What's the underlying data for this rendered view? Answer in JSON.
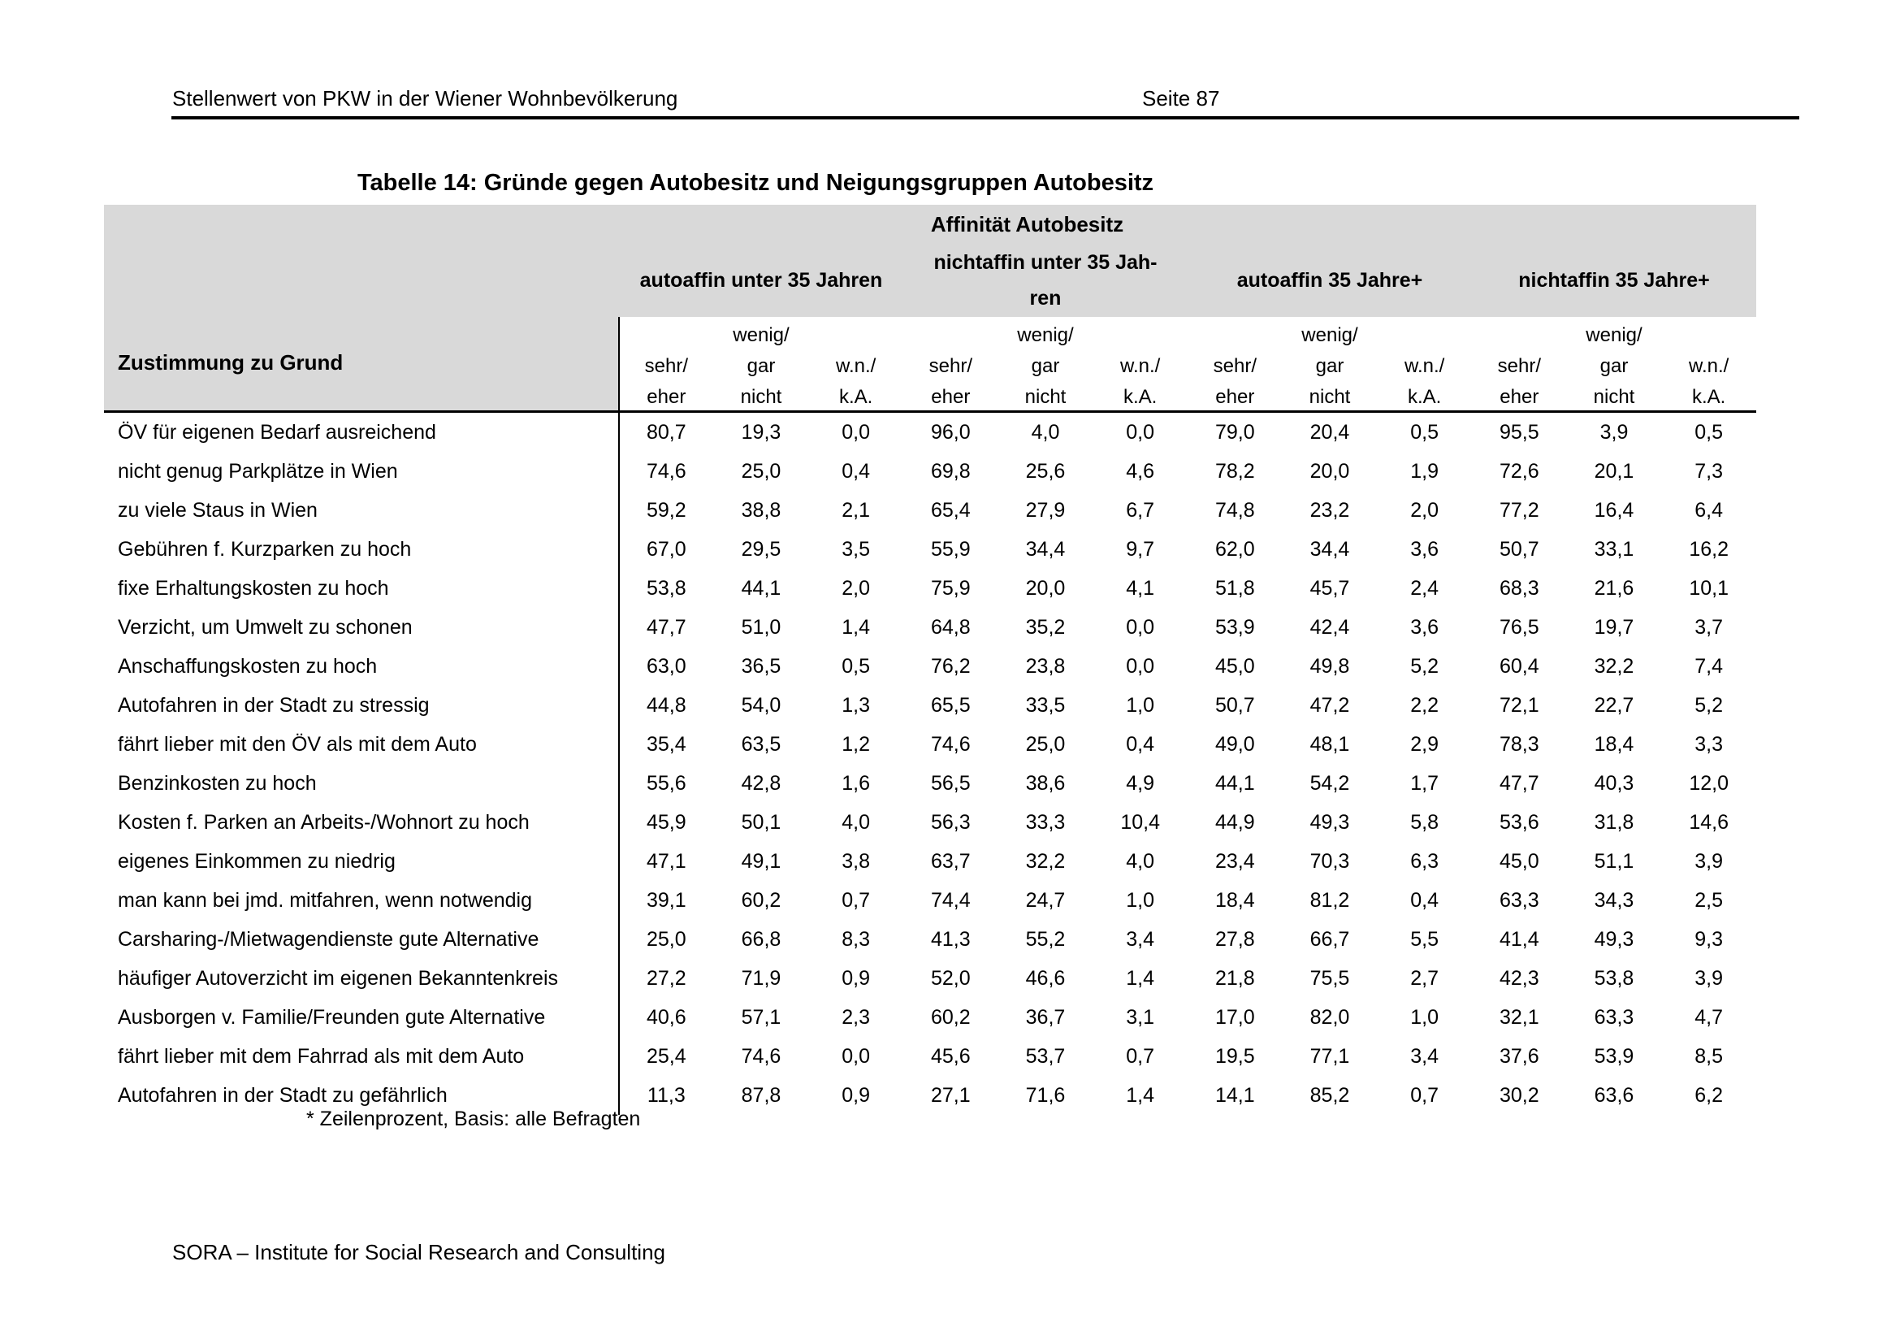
{
  "page_header": {
    "title": "Stellenwert von PKW in der Wiener Wohnbevölkerung",
    "page_number": "Seite 87"
  },
  "table": {
    "title": "Tabelle 14: Gründe gegen Autobesitz und Neigungsgruppen Autobesitz",
    "banner": "Affinität Autobesitz",
    "row_header": "Zustimmung zu Grund",
    "groups": [
      "autoaffin unter 35 Jahren",
      "nichtaffin unter 35 Jah-\nren",
      "autoaffin 35 Jahre+",
      "nichtaffin 35 Jahre+"
    ],
    "subcol_pattern": [
      [
        "",
        "sehr/",
        "eher"
      ],
      [
        "wenig/",
        "gar",
        "nicht"
      ],
      [
        "",
        "w.n./",
        "k.A."
      ]
    ],
    "rows": [
      {
        "label": "ÖV für eigenen Bedarf ausreichend",
        "values": [
          "80,7",
          "19,3",
          "0,0",
          "96,0",
          "4,0",
          "0,0",
          "79,0",
          "20,4",
          "0,5",
          "95,5",
          "3,9",
          "0,5"
        ]
      },
      {
        "label": "nicht genug Parkplätze in Wien",
        "values": [
          "74,6",
          "25,0",
          "0,4",
          "69,8",
          "25,6",
          "4,6",
          "78,2",
          "20,0",
          "1,9",
          "72,6",
          "20,1",
          "7,3"
        ]
      },
      {
        "label": "zu viele Staus in Wien",
        "values": [
          "59,2",
          "38,8",
          "2,1",
          "65,4",
          "27,9",
          "6,7",
          "74,8",
          "23,2",
          "2,0",
          "77,2",
          "16,4",
          "6,4"
        ]
      },
      {
        "label": "Gebühren f. Kurzparken zu hoch",
        "values": [
          "67,0",
          "29,5",
          "3,5",
          "55,9",
          "34,4",
          "9,7",
          "62,0",
          "34,4",
          "3,6",
          "50,7",
          "33,1",
          "16,2"
        ]
      },
      {
        "label": "fixe Erhaltungskosten zu hoch",
        "values": [
          "53,8",
          "44,1",
          "2,0",
          "75,9",
          "20,0",
          "4,1",
          "51,8",
          "45,7",
          "2,4",
          "68,3",
          "21,6",
          "10,1"
        ]
      },
      {
        "label": "Verzicht, um Umwelt zu schonen",
        "values": [
          "47,7",
          "51,0",
          "1,4",
          "64,8",
          "35,2",
          "0,0",
          "53,9",
          "42,4",
          "3,6",
          "76,5",
          "19,7",
          "3,7"
        ]
      },
      {
        "label": "Anschaffungskosten zu hoch",
        "values": [
          "63,0",
          "36,5",
          "0,5",
          "76,2",
          "23,8",
          "0,0",
          "45,0",
          "49,8",
          "5,2",
          "60,4",
          "32,2",
          "7,4"
        ]
      },
      {
        "label": "Autofahren in der Stadt zu stressig",
        "values": [
          "44,8",
          "54,0",
          "1,3",
          "65,5",
          "33,5",
          "1,0",
          "50,7",
          "47,2",
          "2,2",
          "72,1",
          "22,7",
          "5,2"
        ]
      },
      {
        "label": "fährt lieber mit den ÖV als mit dem Auto",
        "values": [
          "35,4",
          "63,5",
          "1,2",
          "74,6",
          "25,0",
          "0,4",
          "49,0",
          "48,1",
          "2,9",
          "78,3",
          "18,4",
          "3,3"
        ]
      },
      {
        "label": "Benzinkosten zu hoch",
        "values": [
          "55,6",
          "42,8",
          "1,6",
          "56,5",
          "38,6",
          "4,9",
          "44,1",
          "54,2",
          "1,7",
          "47,7",
          "40,3",
          "12,0"
        ]
      },
      {
        "label": "Kosten f. Parken an Arbeits-/Wohnort zu hoch",
        "values": [
          "45,9",
          "50,1",
          "4,0",
          "56,3",
          "33,3",
          "10,4",
          "44,9",
          "49,3",
          "5,8",
          "53,6",
          "31,8",
          "14,6"
        ]
      },
      {
        "label": "eigenes Einkommen zu niedrig",
        "values": [
          "47,1",
          "49,1",
          "3,8",
          "63,7",
          "32,2",
          "4,0",
          "23,4",
          "70,3",
          "6,3",
          "45,0",
          "51,1",
          "3,9"
        ]
      },
      {
        "label": "man kann bei jmd. mitfahren, wenn notwendig",
        "values": [
          "39,1",
          "60,2",
          "0,7",
          "74,4",
          "24,7",
          "1,0",
          "18,4",
          "81,2",
          "0,4",
          "63,3",
          "34,3",
          "2,5"
        ]
      },
      {
        "label": "Carsharing-/Mietwagendienste gute Alternative",
        "values": [
          "25,0",
          "66,8",
          "8,3",
          "41,3",
          "55,2",
          "3,4",
          "27,8",
          "66,7",
          "5,5",
          "41,4",
          "49,3",
          "9,3"
        ]
      },
      {
        "label": "häufiger Autoverzicht im eigenen Bekanntenkreis",
        "values": [
          "27,2",
          "71,9",
          "0,9",
          "52,0",
          "46,6",
          "1,4",
          "21,8",
          "75,5",
          "2,7",
          "42,3",
          "53,8",
          "3,9"
        ]
      },
      {
        "label": "Ausborgen v. Familie/Freunden gute Alternative",
        "values": [
          "40,6",
          "57,1",
          "2,3",
          "60,2",
          "36,7",
          "3,1",
          "17,0",
          "82,0",
          "1,0",
          "32,1",
          "63,3",
          "4,7"
        ]
      },
      {
        "label": "fährt lieber mit dem Fahrrad als mit dem Auto",
        "values": [
          "25,4",
          "74,6",
          "0,0",
          "45,6",
          "53,7",
          "0,7",
          "19,5",
          "77,1",
          "3,4",
          "37,6",
          "53,9",
          "8,5"
        ]
      },
      {
        "label": "Autofahren in der Stadt zu gefährlich",
        "values": [
          "11,3",
          "87,8",
          "0,9",
          "27,1",
          "71,6",
          "1,4",
          "14,1",
          "85,2",
          "0,7",
          "30,2",
          "63,6",
          "6,2"
        ]
      }
    ],
    "footnote": "* Zeilenprozent, Basis: alle Befragten"
  },
  "footer": "SORA – Institute for Social Research and Consulting",
  "colors": {
    "header_bg": "#d9d9d9",
    "line": "#000000"
  }
}
